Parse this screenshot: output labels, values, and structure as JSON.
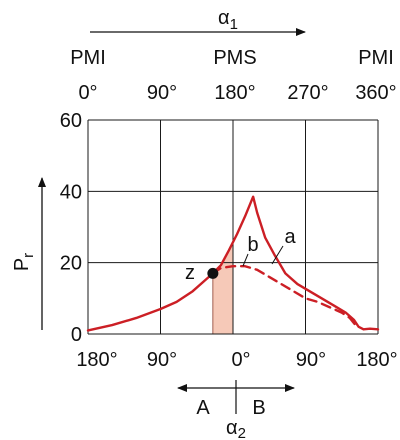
{
  "chart_data": {
    "type": "line",
    "top_axis": {
      "arrow_label": "α",
      "arrow_label_sub": "1",
      "phase_labels": [
        "PMI",
        "PMS",
        "PMI"
      ],
      "tick_labels": [
        "0°",
        "90°",
        "180°",
        "270°",
        "360°"
      ]
    },
    "bottom_axis": {
      "tick_labels": [
        "180°",
        "90°",
        "0°",
        "90°",
        "180°"
      ],
      "arrow_label": "α",
      "arrow_label_sub": "2",
      "left_label": "A",
      "right_label": "B"
    },
    "y_axis": {
      "label": "P",
      "label_sub": "r",
      "ticks": [
        0,
        20,
        40,
        60
      ],
      "ylim": [
        0,
        60
      ]
    },
    "xlim_deg": [
      0,
      360
    ],
    "grid": true,
    "colors": {
      "curve": "#cc1f25",
      "shade": "#f6c9b8",
      "grid": "#1a1a1a"
    },
    "series": [
      {
        "name": "a",
        "style": "solid",
        "points": [
          [
            0,
            1
          ],
          [
            30,
            2.5
          ],
          [
            60,
            4.5
          ],
          [
            90,
            7
          ],
          [
            110,
            9
          ],
          [
            130,
            12
          ],
          [
            145,
            15
          ],
          [
            155,
            17
          ],
          [
            165,
            19.3
          ],
          [
            175,
            23.5
          ],
          [
            185,
            28
          ],
          [
            195,
            33
          ],
          [
            205,
            38.5
          ],
          [
            210,
            34
          ],
          [
            220,
            27
          ],
          [
            232,
            22
          ],
          [
            245,
            17
          ],
          [
            260,
            14
          ],
          [
            275,
            12
          ],
          [
            290,
            10
          ],
          [
            305,
            8
          ],
          [
            320,
            6
          ],
          [
            330,
            4
          ],
          [
            336,
            2
          ],
          [
            342,
            1.3
          ],
          [
            350,
            1.5
          ],
          [
            360,
            1.3
          ]
        ]
      },
      {
        "name": "b",
        "style": "dashed",
        "points": [
          [
            155,
            17
          ],
          [
            165,
            18.5
          ],
          [
            180,
            19
          ],
          [
            195,
            19
          ],
          [
            210,
            18
          ],
          [
            225,
            16
          ],
          [
            240,
            14
          ],
          [
            255,
            12
          ],
          [
            270,
            10
          ],
          [
            285,
            9
          ],
          [
            300,
            7.5
          ],
          [
            315,
            6
          ],
          [
            325,
            4.5
          ],
          [
            332,
            2.5
          ]
        ]
      }
    ],
    "point_z": {
      "label": "z",
      "x": 155,
      "y": 17
    },
    "shaded_region": {
      "x_from": 155,
      "x_to": 180
    }
  }
}
